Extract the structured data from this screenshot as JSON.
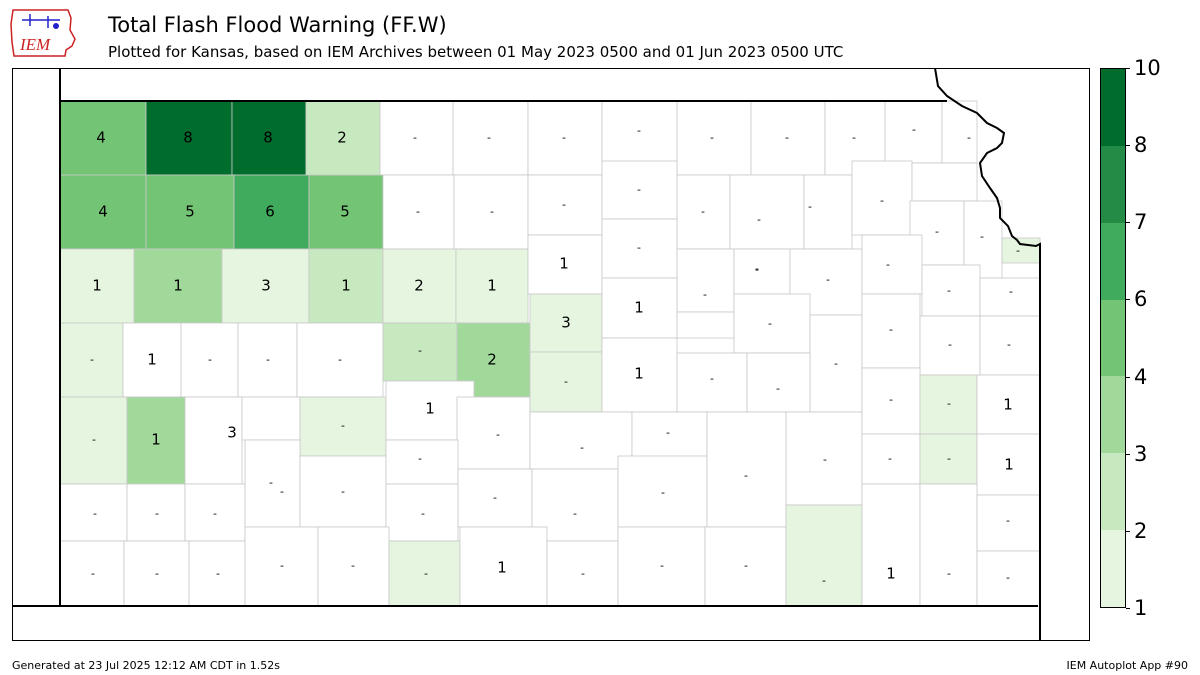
{
  "header": {
    "logo_text": "IEM",
    "title": "Total Flash Flood Warning (FF.W)",
    "subtitle": "Plotted for Kansas, based on IEM Archives  between 01 May 2023 0500 and 01 Jun 2023 0500 UTC"
  },
  "colorbar": {
    "ticks": [
      "1",
      "2",
      "3",
      "4",
      "6",
      "7",
      "8",
      "10"
    ],
    "bin_colors": [
      "#e5f5e0",
      "#c7e9c0",
      "#a1d99b",
      "#74c476",
      "#41ab5d",
      "#238b45",
      "#006d2c"
    ]
  },
  "footer": {
    "generated": "Generated at 23 Jul 2025 12:12 AM CDT in 1.52s",
    "app": "IEM Autoplot App #90"
  },
  "colors": {
    "no_data": "#ffffff",
    "border": "#c8c8c8",
    "state": "#000000"
  },
  "counties": [
    {
      "label": "4",
      "value": 4
    },
    {
      "label": "8",
      "value": 8
    },
    {
      "label": "8",
      "value": 8
    },
    {
      "label": "2",
      "value": 2
    },
    {
      "label": "-",
      "value": null
    },
    {
      "label": "-",
      "value": null
    },
    {
      "label": "-",
      "value": null
    },
    {
      "label": "-",
      "value": null
    },
    {
      "label": "-",
      "value": null
    },
    {
      "label": "-",
      "value": null
    },
    {
      "label": "-",
      "value": null
    },
    {
      "label": "-",
      "value": null
    },
    {
      "label": "-",
      "value": null
    },
    {
      "label": "4",
      "value": 4
    },
    {
      "label": "5",
      "value": 5
    },
    {
      "label": "6",
      "value": 6
    },
    {
      "label": "5",
      "value": 5
    },
    {
      "label": "-",
      "value": null
    },
    {
      "label": "-",
      "value": null
    },
    {
      "label": "-",
      "value": null
    },
    {
      "label": "-",
      "value": null
    },
    {
      "label": "-",
      "value": null
    },
    {
      "label": "-",
      "value": null
    },
    {
      "label": "-",
      "value": null
    },
    {
      "label": "-",
      "value": null
    },
    {
      "label": "-",
      "value": null
    },
    {
      "label": "-",
      "value": null
    },
    {
      "label": "-",
      "value": null
    },
    {
      "label": "1",
      "value": 1
    },
    {
      "label": "1",
      "value": 1
    },
    {
      "label": "3",
      "value": 3
    },
    {
      "label": "1",
      "value": 1
    },
    {
      "label": "2",
      "value": 2
    },
    {
      "label": "1",
      "value": 1
    },
    {
      "label": "1",
      "value": 1
    },
    {
      "label": "-",
      "value": null
    },
    {
      "label": "-",
      "value": null
    },
    {
      "label": "-",
      "value": null
    },
    {
      "label": "-",
      "value": null
    },
    {
      "label": "-",
      "value": null
    },
    {
      "label": "-",
      "value": null
    },
    {
      "label": "-",
      "value": null
    },
    {
      "label": "-",
      "value": null
    },
    {
      "label": "1",
      "value": 1
    },
    {
      "label": "-",
      "value": null
    },
    {
      "label": "-",
      "value": null
    },
    {
      "label": "-",
      "value": null
    },
    {
      "label": "-",
      "value": null
    },
    {
      "label": "2",
      "value": 2
    },
    {
      "label": "3",
      "value": 3
    },
    {
      "label": "1",
      "value": 1
    },
    {
      "label": "-",
      "value": null
    },
    {
      "label": "-",
      "value": null
    },
    {
      "label": "-",
      "value": null
    },
    {
      "label": "-",
      "value": null
    },
    {
      "label": "-",
      "value": null
    },
    {
      "label": "-",
      "value": null
    },
    {
      "label": "-",
      "value": null
    },
    {
      "label": "1",
      "value": 1
    },
    {
      "label": "3",
      "value": 3
    },
    {
      "label": "-",
      "value": null
    },
    {
      "label": "-",
      "value": null
    },
    {
      "label": "1",
      "value": 1
    },
    {
      "label": "-",
      "value": null
    },
    {
      "label": "-",
      "value": null
    },
    {
      "label": "1",
      "value": 1
    },
    {
      "label": "-",
      "value": null
    },
    {
      "label": "-",
      "value": null
    },
    {
      "label": "-",
      "value": null
    },
    {
      "label": "-",
      "value": null
    },
    {
      "label": "-",
      "value": null
    },
    {
      "label": "1",
      "value": 1
    },
    {
      "label": "-",
      "value": null
    },
    {
      "label": "-",
      "value": null
    },
    {
      "label": "-",
      "value": null
    },
    {
      "label": "-",
      "value": null
    },
    {
      "label": "-",
      "value": null
    },
    {
      "label": "-",
      "value": null
    },
    {
      "label": "-",
      "value": null
    },
    {
      "label": "-",
      "value": null
    },
    {
      "label": "-",
      "value": null
    },
    {
      "label": "-",
      "value": null
    },
    {
      "label": "-",
      "value": null
    },
    {
      "label": "-",
      "value": null
    },
    {
      "label": "-",
      "value": null
    },
    {
      "label": "-",
      "value": null
    },
    {
      "label": "1",
      "value": 1
    },
    {
      "label": "-",
      "value": null
    },
    {
      "label": "-",
      "value": null
    },
    {
      "label": "-",
      "value": null
    },
    {
      "label": "-",
      "value": null
    },
    {
      "label": "-",
      "value": null
    },
    {
      "label": "-",
      "value": null
    },
    {
      "label": "-",
      "value": null
    },
    {
      "label": "1",
      "value": 1
    },
    {
      "label": "-",
      "value": null
    },
    {
      "label": "-",
      "value": null
    },
    {
      "label": "-",
      "value": null
    },
    {
      "label": "-",
      "value": null
    },
    {
      "label": "1",
      "value": 1
    },
    {
      "label": "-",
      "value": null
    },
    {
      "label": "-",
      "value": null
    },
    {
      "label": "-",
      "value": null
    },
    {
      "label": "-",
      "value": null
    },
    {
      "label": "-",
      "value": null
    }
  ]
}
